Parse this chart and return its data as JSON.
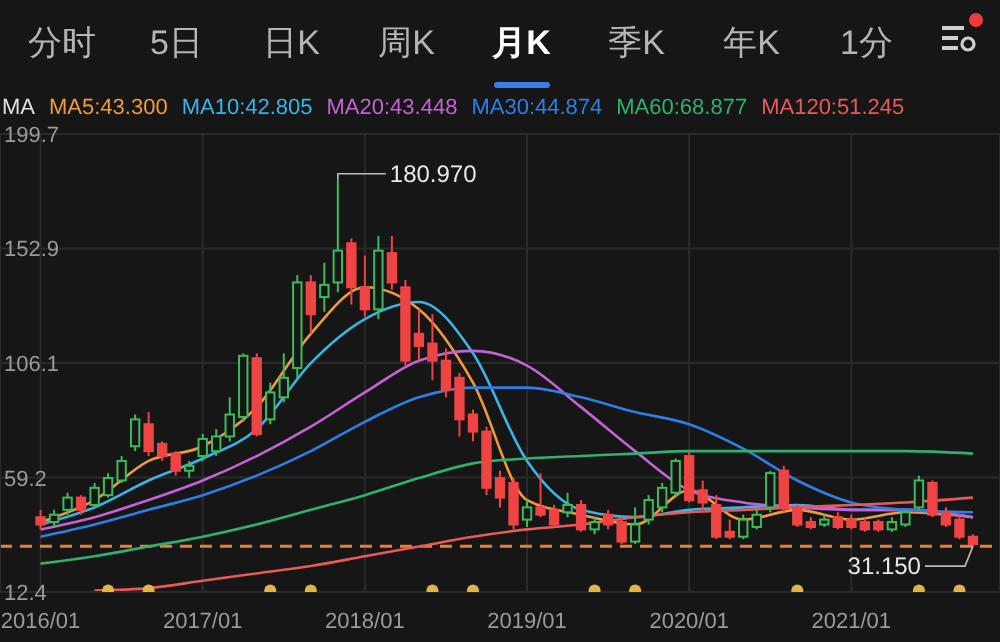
{
  "chart_data": {
    "type": "candlestick",
    "legend_title": "MA",
    "legend": "top",
    "grid": true,
    "annotations": [
      "分时",
      "5日",
      "日K",
      "周K",
      "月K",
      "季K",
      "年K",
      "1分",
      {
        "text": "180.970",
        "x": "2017-11",
        "y": 180.97
      },
      {
        "text": "31.150",
        "x": "2021-10",
        "y": 31.15
      }
    ],
    "x": [
      "2016-01",
      "2016-02",
      "2016-03",
      "2016-04",
      "2016-05",
      "2016-06",
      "2016-07",
      "2016-08",
      "2016-09",
      "2016-10",
      "2016-11",
      "2016-12",
      "2017-01",
      "2017-02",
      "2017-03",
      "2017-04",
      "2017-05",
      "2017-06",
      "2017-07",
      "2017-08",
      "2017-09",
      "2017-10",
      "2017-11",
      "2017-12",
      "2018-01",
      "2018-02",
      "2018-03",
      "2018-04",
      "2018-05",
      "2018-06",
      "2018-07",
      "2018-08",
      "2018-09",
      "2018-10",
      "2018-11",
      "2018-12",
      "2019-01",
      "2019-02",
      "2019-03",
      "2019-04",
      "2019-05",
      "2019-06",
      "2019-07",
      "2019-08",
      "2019-09",
      "2019-10",
      "2019-11",
      "2019-12",
      "2020-01",
      "2020-02",
      "2020-03",
      "2020-04",
      "2020-05",
      "2020-06",
      "2020-07",
      "2020-08",
      "2020-09",
      "2020-10",
      "2020-11",
      "2020-12",
      "2021-01",
      "2021-02",
      "2021-03",
      "2021-04",
      "2021-05",
      "2021-06",
      "2021-07",
      "2021-08",
      "2021-09",
      "2021-10"
    ],
    "ohlc": [
      [
        43,
        46,
        38,
        40
      ],
      [
        41,
        46,
        39,
        44
      ],
      [
        46,
        53,
        44,
        51
      ],
      [
        51,
        52,
        44,
        46
      ],
      [
        48,
        57,
        47,
        55
      ],
      [
        52,
        61,
        51,
        59
      ],
      [
        58,
        68,
        57,
        66
      ],
      [
        72,
        85,
        70,
        83
      ],
      [
        81,
        86,
        68,
        70
      ],
      [
        73,
        74,
        66,
        68
      ],
      [
        69,
        70,
        60,
        62
      ],
      [
        62,
        66,
        59,
        64
      ],
      [
        68,
        77,
        66,
        75
      ],
      [
        70,
        79,
        68,
        76
      ],
      [
        76,
        92,
        74,
        85
      ],
      [
        84,
        110,
        82,
        109
      ],
      [
        108,
        110,
        76,
        77
      ],
      [
        83,
        98,
        81,
        94
      ],
      [
        92,
        110,
        90,
        100
      ],
      [
        104,
        142,
        100,
        139
      ],
      [
        139,
        142,
        118,
        126
      ],
      [
        133,
        147,
        127,
        138
      ],
      [
        139,
        180.97,
        135,
        152
      ],
      [
        155,
        157,
        130,
        137
      ],
      [
        137,
        150,
        125,
        128
      ],
      [
        128,
        158,
        124,
        152
      ],
      [
        151,
        158,
        136,
        139
      ],
      [
        137,
        140,
        105,
        107
      ],
      [
        118,
        128,
        107,
        113
      ],
      [
        114,
        126,
        99,
        107
      ],
      [
        107,
        112,
        92,
        95
      ],
      [
        100,
        102,
        76,
        83
      ],
      [
        85,
        87,
        74,
        78
      ],
      [
        78,
        80,
        52,
        55
      ],
      [
        59,
        62,
        47,
        51
      ],
      [
        57,
        59,
        38,
        40
      ],
      [
        42,
        50,
        39,
        47
      ],
      [
        47,
        61,
        43,
        44
      ],
      [
        46,
        48,
        39,
        40
      ],
      [
        45,
        53,
        43,
        48
      ],
      [
        48,
        50,
        37,
        38
      ],
      [
        38,
        43,
        36,
        41
      ],
      [
        44,
        46,
        38,
        40
      ],
      [
        41,
        43,
        32,
        33
      ],
      [
        33,
        47,
        32,
        40
      ],
      [
        42,
        52,
        40,
        50
      ],
      [
        47,
        57,
        45,
        55
      ],
      [
        53,
        67,
        51,
        66
      ],
      [
        68,
        70,
        49,
        50
      ],
      [
        54,
        58,
        46,
        49
      ],
      [
        48,
        52,
        34,
        35
      ],
      [
        37,
        42,
        34,
        35
      ],
      [
        35,
        44,
        34,
        42
      ],
      [
        39,
        46,
        38,
        44
      ],
      [
        47,
        62,
        45,
        61
      ],
      [
        62,
        64,
        45,
        47
      ],
      [
        47,
        48,
        39,
        40
      ],
      [
        41,
        43,
        38,
        39
      ],
      [
        40,
        44,
        39,
        42
      ],
      [
        43,
        45,
        38,
        39
      ],
      [
        42,
        44,
        38,
        39
      ],
      [
        41,
        43,
        37,
        38
      ],
      [
        41,
        42,
        37,
        38
      ],
      [
        38,
        43,
        37,
        41
      ],
      [
        40,
        46,
        39,
        45
      ],
      [
        47,
        60,
        46,
        58
      ],
      [
        57,
        58,
        43,
        44
      ],
      [
        45,
        47,
        39,
        40
      ],
      [
        42,
        44,
        34,
        35
      ],
      [
        35,
        36,
        31.15,
        32
      ]
    ],
    "colors": [
      "#ef4444",
      "#3dbb5c",
      "#3dbb5c",
      "#ef4444",
      "#3dbb5c",
      "#3dbb5c",
      "#3dbb5c",
      "#3dbb5c",
      "#ef4444",
      "#ef4444",
      "#ef4444",
      "#3dbb5c",
      "#3dbb5c",
      "#3dbb5c",
      "#3dbb5c",
      "#3dbb5c",
      "#ef4444",
      "#3dbb5c",
      "#3dbb5c",
      "#3dbb5c",
      "#ef4444",
      "#3dbb5c",
      "#3dbb5c",
      "#ef4444",
      "#ef4444",
      "#3dbb5c",
      "#ef4444",
      "#ef4444",
      "#ef4444",
      "#ef4444",
      "#ef4444",
      "#ef4444",
      "#ef4444",
      "#ef4444",
      "#ef4444",
      "#ef4444",
      "#3dbb5c",
      "#ef4444",
      "#ef4444",
      "#3dbb5c",
      "#ef4444",
      "#3dbb5c",
      "#ef4444",
      "#ef4444",
      "#3dbb5c",
      "#3dbb5c",
      "#3dbb5c",
      "#3dbb5c",
      "#ef4444",
      "#ef4444",
      "#ef4444",
      "#ef4444",
      "#3dbb5c",
      "#3dbb5c",
      "#3dbb5c",
      "#ef4444",
      "#ef4444",
      "#ef4444",
      "#3dbb5c",
      "#ef4444",
      "#ef4444",
      "#ef4444",
      "#ef4444",
      "#3dbb5c",
      "#3dbb5c",
      "#3dbb5c",
      "#ef4444",
      "#ef4444",
      "#ef4444",
      "#ef4444"
    ],
    "series": [
      {
        "type": "line",
        "name": "MA5:43.300",
        "color": "#f09a3e",
        "x": [
          "2016-01",
          "2016-05",
          "2016-09",
          "2017-01",
          "2017-05",
          "2017-09",
          "2018-01",
          "2018-05",
          "2018-09",
          "2019-01",
          "2019-05",
          "2019-09",
          "2020-01",
          "2020-05",
          "2020-09",
          "2021-01",
          "2021-05",
          "2021-10"
        ],
        "values": [
          41,
          50,
          66,
          72,
          88,
          118,
          137,
          128,
          98,
          50,
          44,
          40,
          54,
          42,
          46,
          42,
          45,
          43
        ]
      },
      {
        "type": "line",
        "name": "MA10:42.805",
        "color": "#3ab4e6",
        "x": [
          "2016-01",
          "2016-05",
          "2016-09",
          "2017-01",
          "2017-05",
          "2017-09",
          "2018-01",
          "2018-05",
          "2018-09",
          "2019-01",
          "2019-05",
          "2019-09",
          "2020-01",
          "2020-05",
          "2020-09",
          "2021-01",
          "2021-05",
          "2021-10"
        ],
        "values": [
          40,
          47,
          58,
          67,
          79,
          106,
          124,
          131,
          110,
          66,
          46,
          43,
          46,
          47,
          48,
          46,
          46,
          43
        ]
      },
      {
        "type": "line",
        "name": "MA20:43.448",
        "color": "#c462d6",
        "x": [
          "2016-01",
          "2016-05",
          "2016-09",
          "2017-01",
          "2017-05",
          "2017-09",
          "2018-01",
          "2018-05",
          "2018-09",
          "2019-01",
          "2019-05",
          "2019-09",
          "2020-01",
          "2020-05",
          "2020-09",
          "2021-01",
          "2021-05",
          "2021-10"
        ],
        "values": [
          38,
          43,
          50,
          58,
          68,
          80,
          94,
          107,
          111,
          105,
          88,
          70,
          54,
          49,
          47,
          46,
          46,
          43
        ]
      },
      {
        "type": "line",
        "name": "MA30:44.874",
        "color": "#2f7ee6",
        "x": [
          "2016-01",
          "2016-05",
          "2016-09",
          "2017-01",
          "2017-05",
          "2017-09",
          "2018-01",
          "2018-05",
          "2018-09",
          "2019-01",
          "2019-05",
          "2019-09",
          "2020-01",
          "2020-05",
          "2020-09",
          "2021-01",
          "2021-05",
          "2021-10"
        ],
        "values": [
          35,
          40,
          46,
          52,
          60,
          70,
          82,
          92,
          96,
          96,
          92,
          86,
          81,
          71,
          58,
          49,
          46,
          45
        ]
      },
      {
        "type": "line",
        "name": "MA60:68.877",
        "color": "#2fb06e",
        "x": [
          "2016-01",
          "2016-05",
          "2016-09",
          "2017-01",
          "2017-05",
          "2017-09",
          "2018-01",
          "2018-05",
          "2018-09",
          "2019-01",
          "2019-05",
          "2019-09",
          "2020-01",
          "2020-05",
          "2020-09",
          "2021-01",
          "2021-05",
          "2021-10"
        ],
        "values": [
          24,
          27,
          31,
          35,
          40,
          46,
          52,
          59,
          65,
          67,
          68,
          69,
          70,
          70,
          70,
          70,
          70,
          69
        ]
      },
      {
        "type": "line",
        "name": "MA120:51.245",
        "color": "#e85a5a",
        "x": [
          "2016-05",
          "2016-09",
          "2017-01",
          "2017-05",
          "2017-09",
          "2018-01",
          "2018-05",
          "2018-09",
          "2019-01",
          "2019-05",
          "2019-09",
          "2020-01",
          "2020-05",
          "2020-09",
          "2021-01",
          "2021-05",
          "2021-10"
        ],
        "values": [
          13,
          14,
          17,
          20,
          23,
          27,
          31,
          35,
          38,
          40,
          43,
          45,
          46,
          47,
          48,
          49,
          51
        ]
      },
      {
        "type": "scatter",
        "color": "#e0b446",
        "marker": "circle",
        "x": [
          "2016-06",
          "2016-09",
          "2017-06",
          "2017-09",
          "2018-06",
          "2018-09",
          "2019-06",
          "2019-09",
          "2020-09",
          "2021-06",
          "2021-09"
        ],
        "values": [
          13,
          13,
          13,
          13,
          13,
          13,
          13,
          13,
          13,
          13,
          13
        ]
      }
    ],
    "xlim": [
      "2015-10",
      "2021-12"
    ],
    "xticks": [
      {
        "value": "2016-01",
        "label": "2016/01"
      },
      {
        "value": "2017-01",
        "label": "2017/01"
      },
      {
        "value": "2018-01",
        "label": "2018/01"
      },
      {
        "value": "2019-01",
        "label": "2019/01"
      },
      {
        "value": "2020-01",
        "label": "2020/01"
      },
      {
        "value": "2021-01",
        "label": "2021/01"
      }
    ],
    "ylim": [
      12.4,
      199.7
    ],
    "yticks": [
      12.4,
      59.2,
      106.1,
      152.9,
      199.7
    ],
    "ref_lines": [
      {
        "axis": "y",
        "value": 31.15,
        "color": "#e8803a",
        "line_style": "dashed"
      }
    ]
  }
}
